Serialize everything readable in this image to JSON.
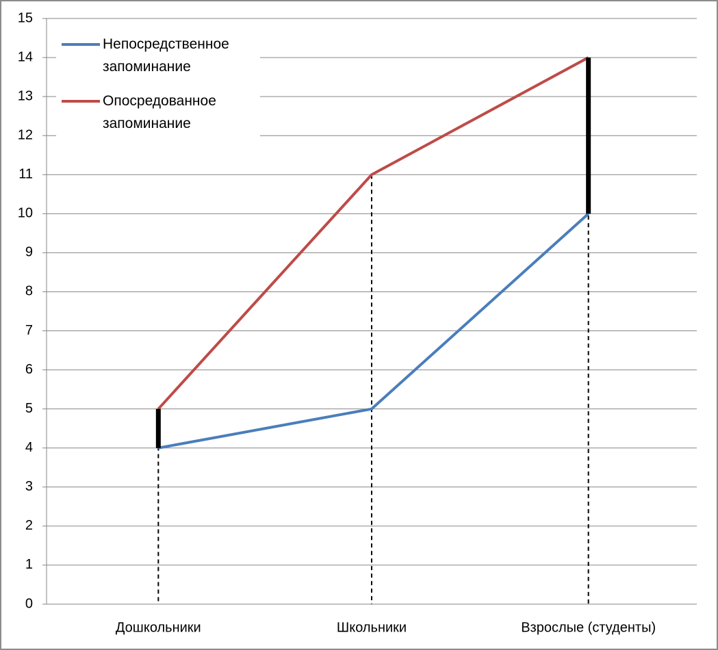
{
  "chart_data": {
    "type": "line",
    "categories": [
      "Дошкольники",
      "Школьники",
      "Взрослые (студенты)"
    ],
    "series": [
      {
        "name": "Непосредственное запоминание",
        "color": "#4a7ebb",
        "values": [
          4,
          5,
          10
        ]
      },
      {
        "name": "Опосредованное запоминание",
        "color": "#be4b48",
        "values": [
          5,
          11,
          14
        ]
      }
    ],
    "ylim": [
      0,
      15
    ],
    "yticks": [
      0,
      1,
      2,
      3,
      4,
      5,
      6,
      7,
      8,
      9,
      10,
      11,
      12,
      13,
      14,
      15
    ],
    "grid": true,
    "legend": "top-left",
    "drop_lines": true,
    "difference_bars": [
      0,
      2
    ]
  }
}
